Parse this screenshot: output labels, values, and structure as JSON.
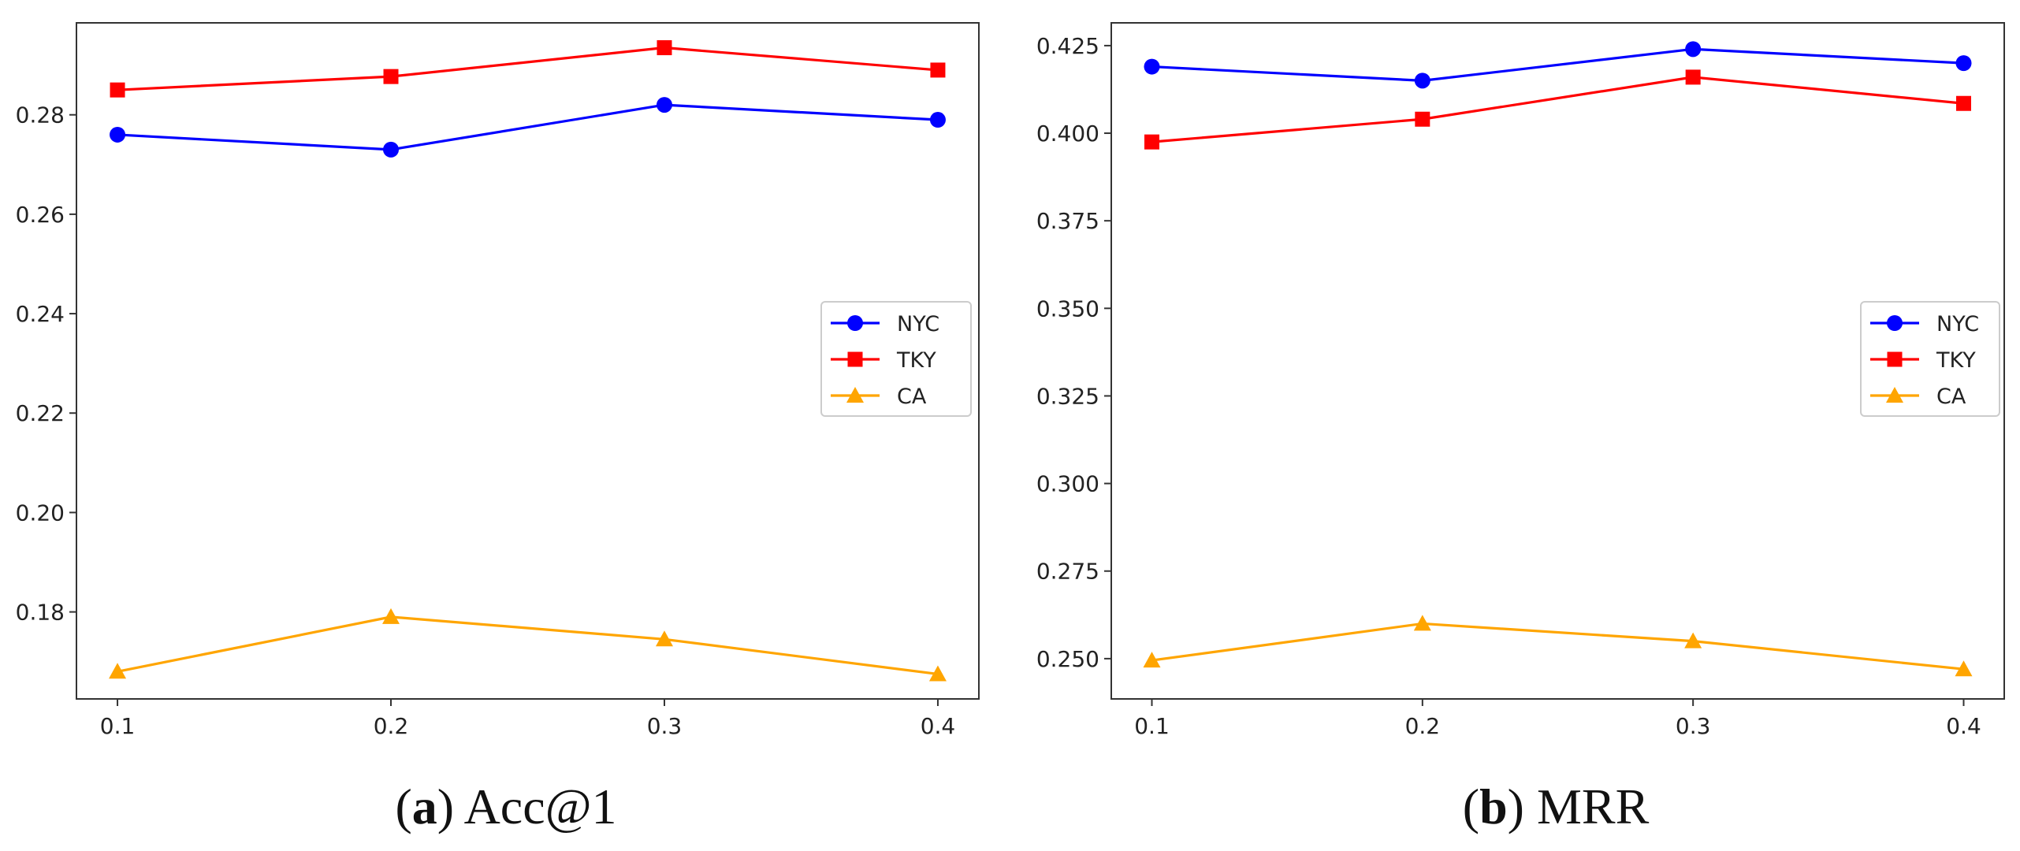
{
  "chart_data": [
    {
      "type": "line",
      "caption": {
        "prefix": "(",
        "letter": "a",
        "suffix": ")",
        "title": "Acc@1"
      },
      "x": [
        0.1,
        0.2,
        0.3,
        0.4
      ],
      "xticks": [
        "0.1",
        "0.2",
        "0.3",
        "0.4"
      ],
      "xlim": [
        0.085,
        0.415
      ],
      "yticks": [
        "0.18",
        "0.20",
        "0.22",
        "0.24",
        "0.26",
        "0.28"
      ],
      "ytick_values": [
        0.18,
        0.2,
        0.22,
        0.24,
        0.26,
        0.28
      ],
      "ylim": [
        0.1625,
        0.2985
      ],
      "legend": "center-right",
      "series": [
        {
          "name": "NYC",
          "color": "#0000ff",
          "marker": "circle",
          "values": [
            0.276,
            0.273,
            0.282,
            0.279
          ]
        },
        {
          "name": "TKY",
          "color": "#ff0000",
          "marker": "square",
          "values": [
            0.285,
            0.2877,
            0.2935,
            0.289
          ]
        },
        {
          "name": "CA",
          "color": "#ffa500",
          "marker": "triangle",
          "values": [
            0.168,
            0.179,
            0.1745,
            0.1675
          ]
        }
      ]
    },
    {
      "type": "line",
      "caption": {
        "prefix": "(",
        "letter": "b",
        "suffix": ")",
        "title": "MRR"
      },
      "x": [
        0.1,
        0.2,
        0.3,
        0.4
      ],
      "xticks": [
        "0.1",
        "0.2",
        "0.3",
        "0.4"
      ],
      "xlim": [
        0.085,
        0.415
      ],
      "yticks": [
        "0.250",
        "0.275",
        "0.300",
        "0.325",
        "0.350",
        "0.375",
        "0.400",
        "0.425"
      ],
      "ytick_values": [
        0.25,
        0.275,
        0.3,
        0.325,
        0.35,
        0.375,
        0.4,
        0.425
      ],
      "ylim": [
        0.2385,
        0.4315
      ],
      "legend": "center-right",
      "series": [
        {
          "name": "NYC",
          "color": "#0000ff",
          "marker": "circle",
          "values": [
            0.419,
            0.415,
            0.424,
            0.42
          ]
        },
        {
          "name": "TKY",
          "color": "#ff0000",
          "marker": "square",
          "values": [
            0.3975,
            0.404,
            0.416,
            0.4085
          ]
        },
        {
          "name": "CA",
          "color": "#ffa500",
          "marker": "triangle",
          "values": [
            0.2495,
            0.26,
            0.255,
            0.247
          ]
        }
      ]
    }
  ]
}
